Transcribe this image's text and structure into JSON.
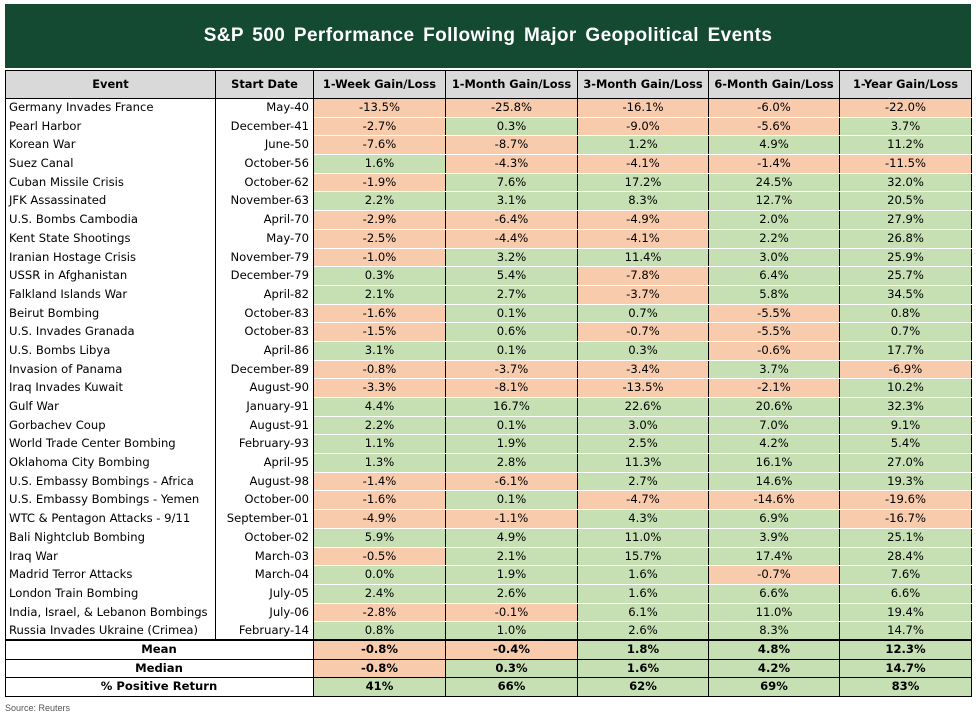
{
  "title": "S&P 500 Performance Following Major Geopolitical Events",
  "headers": [
    "Event",
    "Start Date",
    "1-Week Gain/Loss",
    "1-Month Gain/Loss",
    "3-Month Gain/Loss",
    "6-Month Gain/Loss",
    "1-Year Gain/Loss"
  ],
  "rows": [
    {
      "event": "Germany Invades France",
      "date": "May-40",
      "values": [
        "-13.5%",
        "-25.8%",
        "-16.1%",
        "-6.0%",
        "-22.0%"
      ]
    },
    {
      "event": "Pearl Harbor",
      "date": "December-41",
      "values": [
        "-2.7%",
        "0.3%",
        "-9.0%",
        "-5.6%",
        "3.7%"
      ]
    },
    {
      "event": "Korean War",
      "date": "June-50",
      "values": [
        "-7.6%",
        "-8.7%",
        "1.2%",
        "4.9%",
        "11.2%"
      ]
    },
    {
      "event": "Suez Canal",
      "date": "October-56",
      "values": [
        "1.6%",
        "-4.3%",
        "-4.1%",
        "-1.4%",
        "-11.5%"
      ]
    },
    {
      "event": "Cuban Missile Crisis",
      "date": "October-62",
      "values": [
        "-1.9%",
        "7.6%",
        "17.2%",
        "24.5%",
        "32.0%"
      ]
    },
    {
      "event": "JFK Assassinated",
      "date": "November-63",
      "values": [
        "2.2%",
        "3.1%",
        "8.3%",
        "12.7%",
        "20.5%"
      ]
    },
    {
      "event": "U.S. Bombs Cambodia",
      "date": "April-70",
      "values": [
        "-2.9%",
        "-6.4%",
        "-4.9%",
        "2.0%",
        "27.9%"
      ]
    },
    {
      "event": "Kent State Shootings",
      "date": "May-70",
      "values": [
        "-2.5%",
        "-4.4%",
        "-4.1%",
        "2.2%",
        "26.8%"
      ]
    },
    {
      "event": "Iranian Hostage Crisis",
      "date": "November-79",
      "values": [
        "-1.0%",
        "3.2%",
        "11.4%",
        "3.0%",
        "25.9%"
      ]
    },
    {
      "event": "USSR in Afghanistan",
      "date": "December-79",
      "values": [
        "0.3%",
        "5.4%",
        "-7.8%",
        "6.4%",
        "25.7%"
      ]
    },
    {
      "event": "Falkland Islands War",
      "date": "April-82",
      "values": [
        "2.1%",
        "2.7%",
        "-3.7%",
        "5.8%",
        "34.5%"
      ]
    },
    {
      "event": "Beirut Bombing",
      "date": "October-83",
      "values": [
        "-1.6%",
        "0.1%",
        "0.7%",
        "-5.5%",
        "0.8%"
      ]
    },
    {
      "event": "U.S. Invades Granada",
      "date": "October-83",
      "values": [
        "-1.5%",
        "0.6%",
        "-0.7%",
        "-5.5%",
        "0.7%"
      ]
    },
    {
      "event": "U.S. Bombs Libya",
      "date": "April-86",
      "values": [
        "3.1%",
        "0.1%",
        "0.3%",
        "-0.6%",
        "17.7%"
      ]
    },
    {
      "event": "Invasion of Panama",
      "date": "December-89",
      "values": [
        "-0.8%",
        "-3.7%",
        "-3.4%",
        "3.7%",
        "-6.9%"
      ]
    },
    {
      "event": "Iraq Invades Kuwait",
      "date": "August-90",
      "values": [
        "-3.3%",
        "-8.1%",
        "-13.5%",
        "-2.1%",
        "10.2%"
      ]
    },
    {
      "event": "Gulf War",
      "date": "January-91",
      "values": [
        "4.4%",
        "16.7%",
        "22.6%",
        "20.6%",
        "32.3%"
      ]
    },
    {
      "event": "Gorbachev Coup",
      "date": "August-91",
      "values": [
        "2.2%",
        "0.1%",
        "3.0%",
        "7.0%",
        "9.1%"
      ]
    },
    {
      "event": "World Trade Center Bombing",
      "date": "February-93",
      "values": [
        "1.1%",
        "1.9%",
        "2.5%",
        "4.2%",
        "5.4%"
      ]
    },
    {
      "event": "Oklahoma City Bombing",
      "date": "April-95",
      "values": [
        "1.3%",
        "2.8%",
        "11.3%",
        "16.1%",
        "27.0%"
      ]
    },
    {
      "event": "U.S. Embassy Bombings - Africa",
      "date": "August-98",
      "values": [
        "-1.4%",
        "-6.1%",
        "2.7%",
        "14.6%",
        "19.3%"
      ]
    },
    {
      "event": "U.S. Embassy Bombings - Yemen",
      "date": "October-00",
      "values": [
        "-1.6%",
        "0.1%",
        "-4.7%",
        "-14.6%",
        "-19.6%"
      ]
    },
    {
      "event": "WTC & Pentagon Attacks - 9/11",
      "date": "September-01",
      "values": [
        "-4.9%",
        "-1.1%",
        "4.3%",
        "6.9%",
        "-16.7%"
      ]
    },
    {
      "event": "Bali Nightclub Bombing",
      "date": "October-02",
      "values": [
        "5.9%",
        "4.9%",
        "11.0%",
        "3.9%",
        "25.1%"
      ]
    },
    {
      "event": "Iraq War",
      "date": "March-03",
      "values": [
        "-0.5%",
        "2.1%",
        "15.7%",
        "17.4%",
        "28.4%"
      ]
    },
    {
      "event": "Madrid Terror Attacks",
      "date": "March-04",
      "values": [
        "0.0%",
        "1.9%",
        "1.6%",
        "-0.7%",
        "7.6%"
      ]
    },
    {
      "event": "London Train Bombing",
      "date": "July-05",
      "values": [
        "2.4%",
        "2.6%",
        "1.6%",
        "6.6%",
        "6.6%"
      ]
    },
    {
      "event": "India, Israel, & Lebanon Bombings",
      "date": "July-06",
      "values": [
        "-2.8%",
        "-0.1%",
        "6.1%",
        "11.0%",
        "19.4%"
      ]
    },
    {
      "event": "Russia Invades Ukraine (Crimea)",
      "date": "February-14",
      "values": [
        "0.8%",
        "1.0%",
        "2.6%",
        "8.3%",
        "14.7%"
      ]
    }
  ],
  "summary": [
    {
      "label": "Mean",
      "values": [
        "-0.8%",
        "-0.4%",
        "1.8%",
        "4.8%",
        "12.3%"
      ]
    },
    {
      "label": "Median",
      "values": [
        "-0.8%",
        "0.3%",
        "1.6%",
        "4.2%",
        "14.7%"
      ]
    },
    {
      "label": "% Positive Return",
      "values": [
        "41%",
        "66%",
        "62%",
        "69%",
        "83%"
      ]
    }
  ],
  "source": "Source: Reuters",
  "colors": {
    "title_bg": "#144a32",
    "header_bg": "#d9d9d9",
    "positive": "#c6e0b4",
    "negative": "#f8cbad"
  }
}
